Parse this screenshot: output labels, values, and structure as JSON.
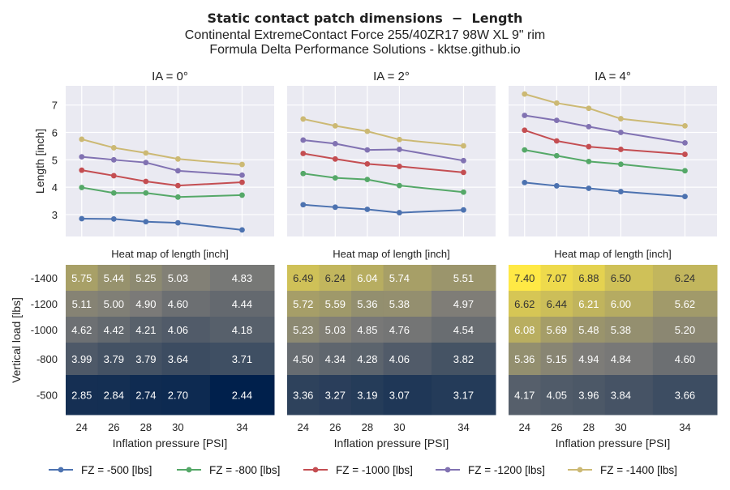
{
  "title": "Static contact patch dimensions  −  Length",
  "subtitle1": "Continental ExtremeContact Force 255/40ZR17 98W XL 9\" rim",
  "subtitle2": "Formula Delta Performance Solutions - kktse.github.io",
  "line_ylabel": "Length [inch]",
  "heatmap_ylabel": "Vertical load [lbs]",
  "xlabel": "Inflation pressure [PSI]",
  "heatmap_title": "Heat map of length [inch]",
  "colors": {
    "series": [
      "#4c72b0",
      "#55a868",
      "#c44e52",
      "#8172b2",
      "#ccb974"
    ],
    "plot_bg": "#eaeaf2",
    "grid": "#ffffff",
    "heat_low": "#00204c",
    "heat_mid": "#7c7b78",
    "heat_high": "#ffe945"
  },
  "chart_data": {
    "type": "line",
    "x": [
      24,
      26,
      28,
      30,
      34
    ],
    "ylim": [
      2.2,
      7.7
    ],
    "yticks": [
      3,
      4,
      5,
      6,
      7
    ],
    "grid": true,
    "legend_position": "bottom",
    "legend": [
      "FZ = -500 [lbs]",
      "FZ = -800 [lbs]",
      "FZ = -1000 [lbs]",
      "FZ = -1200 [lbs]",
      "FZ = -1400 [lbs]"
    ],
    "panels": [
      {
        "title": "IA = 0°",
        "series": [
          {
            "name": "FZ = -500 [lbs]",
            "values": [
              2.85,
              2.84,
              2.74,
              2.7,
              2.44
            ]
          },
          {
            "name": "FZ = -800 [lbs]",
            "values": [
              3.99,
              3.79,
              3.79,
              3.64,
              3.71
            ]
          },
          {
            "name": "FZ = -1000 [lbs]",
            "values": [
              4.62,
              4.42,
              4.21,
              4.06,
              4.18
            ]
          },
          {
            "name": "FZ = -1200 [lbs]",
            "values": [
              5.11,
              5.0,
              4.9,
              4.6,
              4.44
            ]
          },
          {
            "name": "FZ = -1400 [lbs]",
            "values": [
              5.75,
              5.44,
              5.25,
              5.03,
              4.83
            ]
          }
        ]
      },
      {
        "title": "IA = 2°",
        "series": [
          {
            "name": "FZ = -500 [lbs]",
            "values": [
              3.36,
              3.27,
              3.19,
              3.07,
              3.17
            ]
          },
          {
            "name": "FZ = -800 [lbs]",
            "values": [
              4.5,
              4.34,
              4.28,
              4.06,
              3.82
            ]
          },
          {
            "name": "FZ = -1000 [lbs]",
            "values": [
              5.23,
              5.03,
              4.85,
              4.76,
              4.54
            ]
          },
          {
            "name": "FZ = -1200 [lbs]",
            "values": [
              5.72,
              5.59,
              5.36,
              5.38,
              4.97
            ]
          },
          {
            "name": "FZ = -1400 [lbs]",
            "values": [
              6.49,
              6.24,
              6.04,
              5.74,
              5.51
            ]
          }
        ]
      },
      {
        "title": "IA = 4°",
        "series": [
          {
            "name": "FZ = -500 [lbs]",
            "values": [
              4.17,
              4.05,
              3.96,
              3.84,
              3.66
            ]
          },
          {
            "name": "FZ = -800 [lbs]",
            "values": [
              5.36,
              5.15,
              4.94,
              4.84,
              4.6
            ]
          },
          {
            "name": "FZ = -1000 [lbs]",
            "values": [
              6.08,
              5.69,
              5.48,
              5.38,
              5.2
            ]
          },
          {
            "name": "FZ = -1200 [lbs]",
            "values": [
              6.62,
              6.44,
              6.21,
              6.0,
              5.62
            ]
          },
          {
            "name": "FZ = -1400 [lbs]",
            "values": [
              7.4,
              7.07,
              6.88,
              6.5,
              6.24
            ]
          }
        ]
      }
    ],
    "heatmap": {
      "type": "heatmap",
      "rows": [
        "-1400",
        "-1200",
        "-1000",
        "-800",
        "-500"
      ],
      "x": [
        24,
        26,
        28,
        30,
        34
      ],
      "value_range": [
        2.44,
        7.4
      ]
    }
  }
}
